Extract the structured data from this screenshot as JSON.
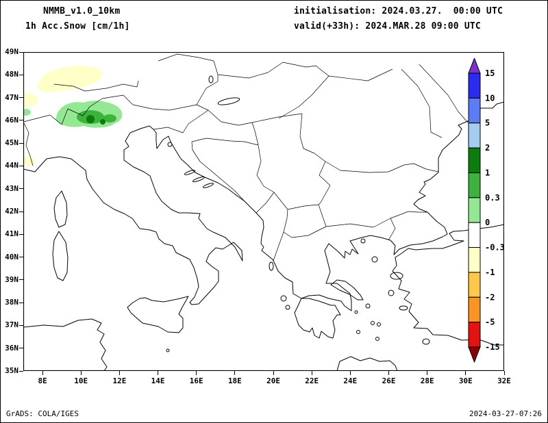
{
  "title": {
    "model": "NMMB_v1.0_10km",
    "variable": "1h Acc.Snow [cm/1h]",
    "initialisation": "initialisation: 2024.03.27.  00:00 UTC",
    "valid": "valid(+33h): 2024.MAR.28 09:00 UTC"
  },
  "axes": {
    "lat_labels": [
      "49N",
      "48N",
      "47N",
      "46N",
      "45N",
      "44N",
      "43N",
      "42N",
      "41N",
      "40N",
      "39N",
      "38N",
      "37N",
      "36N",
      "35N"
    ],
    "lon_labels": [
      "8E",
      "10E",
      "12E",
      "14E",
      "16E",
      "18E",
      "20E",
      "22E",
      "24E",
      "26E",
      "28E",
      "30E",
      "32E"
    ]
  },
  "colorbar": {
    "tick_labels": [
      "15",
      "10",
      "5",
      "2",
      "1",
      "0.3",
      "0",
      "-0.3",
      "-1",
      "-2",
      "-5",
      "-15"
    ],
    "segment_colors": [
      "#2a2af0",
      "#5b7cf5",
      "#a6ccf2",
      "#0c7c0c",
      "#3db33d",
      "#94e894",
      "#ffffff",
      "#ffffc8",
      "#fdc84b",
      "#fb9427",
      "#e51212"
    ],
    "above_color": "#7a2fd2",
    "below_color": "#8b0000"
  },
  "shading": {
    "light_green": "#94e894",
    "medium_green": "#3db33d",
    "dark_green": "#0c7c0c",
    "pale_yellow": "#ffffc8"
  },
  "footer": {
    "left": "GrADS: COLA/IGES",
    "right": "2024-03-27-07:26"
  },
  "chart_data": {
    "type": "heatmap",
    "title": "NMMB_v1.0_10km — 1h Acc.Snow [cm/1h]",
    "initialisation": "2024.03.27 00:00 UTC",
    "valid": "+33h, 2024.MAR.28 09:00 UTC",
    "map_extent": {
      "lon_e": [
        7,
        32
      ],
      "lat_n": [
        35,
        49
      ]
    },
    "lat_ticks_deg_n": [
      49,
      48,
      47,
      46,
      45,
      44,
      43,
      42,
      41,
      40,
      39,
      38,
      37,
      36,
      35
    ],
    "lon_ticks_deg_e": [
      8,
      10,
      12,
      14,
      16,
      18,
      20,
      22,
      24,
      26,
      28,
      30,
      32
    ],
    "colorbar_levels": [
      15,
      10,
      5,
      2,
      1,
      0.3,
      0,
      -0.3,
      -1,
      -2,
      -5,
      -15
    ],
    "shaded_regions": [
      {
        "area": "Alps ~9.5-12E, 45.6-46.5N",
        "value": "0.3 to 2 cm/1h snow (light/medium green with dark-green cores)"
      },
      {
        "area": "~8.5-11.5E, 47.7-48.6N",
        "value": "-0.3 to -1 band (pale yellow)"
      },
      {
        "area": "left map edge ~7E, 46.6-47.1N and ~44.2N",
        "value": "-0.3 to -1 band (pale yellow)"
      }
    ],
    "legend_position": "right",
    "grid": "off"
  }
}
